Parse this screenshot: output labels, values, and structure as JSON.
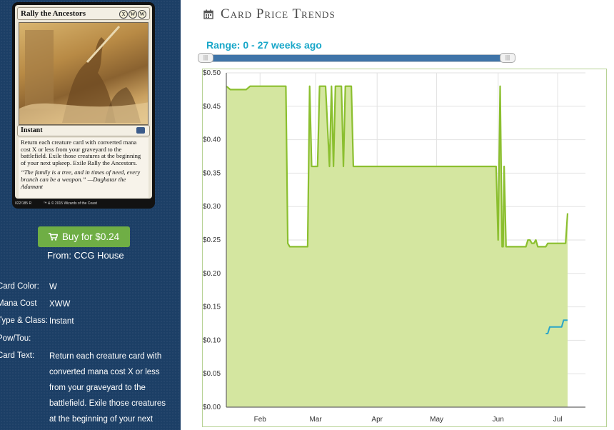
{
  "card": {
    "name": "Rally the Ancestors",
    "mana_symbols": [
      "X",
      "W",
      "W"
    ],
    "type_line": "Instant",
    "rules_text": "Return each creature card with converted mana cost X or less from your graveyard to the battlefield. Exile those creatures at the beginning of your next upkeep. Exile Rally the Ancestors.",
    "flavor_text": "“The family is a tree, and in times of need, every branch can be a weapon.” —Daghatar the Adamant",
    "collector": "022/185 R",
    "copyright": "™ & © 2015 Wizards of the Coast"
  },
  "buy": {
    "label": "Buy for $0.24",
    "icon": "shopping-cart-icon",
    "color": "#6fae45"
  },
  "seller": "From: CCG House",
  "details": [
    {
      "label": "Card Color:",
      "value": "W"
    },
    {
      "label": "Mana Cost",
      "value": "XWW"
    },
    {
      "label": "Type & Class:",
      "value": "Instant"
    },
    {
      "label": "Pow/Tou:",
      "value": ""
    },
    {
      "label": "Card Text:",
      "value": "Return each creature card with converted mana cost X or less from your graveyard to the battlefield. Exile those creatures at the beginning of your next"
    }
  ],
  "heading": {
    "icon": "calendar-icon",
    "title": "Card Price Trends"
  },
  "range": {
    "label": "Range: 0 - 27 weeks ago",
    "handle_grip": "|||"
  },
  "chart_data": {
    "type": "area",
    "ylim": [
      0,
      0.5
    ],
    "y_ticks": [
      "$0.00",
      "$0.05",
      "$0.10",
      "$0.15",
      "$0.20",
      "$0.25",
      "$0.30",
      "$0.35",
      "$0.40",
      "$0.45",
      "$0.50"
    ],
    "x_ticks": [
      "Feb",
      "Mar",
      "Apr",
      "May",
      "Jun",
      "Jul"
    ],
    "x_tick_days": [
      31,
      59,
      90,
      120,
      151,
      181
    ],
    "x_domain_days": [
      14,
      195
    ],
    "grid": true,
    "colors": {
      "market": "#8bbf2f",
      "market_fill": "#d4e6a0",
      "buy": "#2aa5c8",
      "grid": "#e2e2e2"
    },
    "series": [
      {
        "style": "area",
        "x": [
          14,
          16,
          24,
          26,
          44,
          45,
          46,
          47,
          55,
          56,
          57,
          58,
          60,
          61,
          62,
          64,
          66,
          67,
          68,
          69,
          70,
          71,
          72,
          73,
          74,
          76,
          77,
          78,
          80,
          150,
          151,
          152,
          153,
          153.5,
          154,
          155,
          160,
          165,
          166,
          167,
          168,
          169,
          170,
          171,
          175,
          176,
          177,
          178,
          179,
          180,
          181,
          185,
          186
        ],
        "y": [
          0.48,
          0.475,
          0.475,
          0.48,
          0.48,
          0.245,
          0.24,
          0.24,
          0.24,
          0.48,
          0.36,
          0.36,
          0.36,
          0.48,
          0.48,
          0.48,
          0.36,
          0.48,
          0.36,
          0.48,
          0.48,
          0.48,
          0.48,
          0.36,
          0.48,
          0.48,
          0.48,
          0.36,
          0.36,
          0.36,
          0.25,
          0.48,
          0.24,
          0.24,
          0.36,
          0.24,
          0.24,
          0.24,
          0.25,
          0.25,
          0.245,
          0.245,
          0.25,
          0.24,
          0.24,
          0.245,
          0.245,
          0.245,
          0.245,
          0.245,
          0.245,
          0.245,
          0.29
        ]
      },
      {
        "style": "line",
        "x": [
          175,
          176,
          177,
          183,
          184,
          186
        ],
        "y": [
          0.11,
          0.11,
          0.12,
          0.12,
          0.13,
          0.13
        ]
      }
    ]
  }
}
